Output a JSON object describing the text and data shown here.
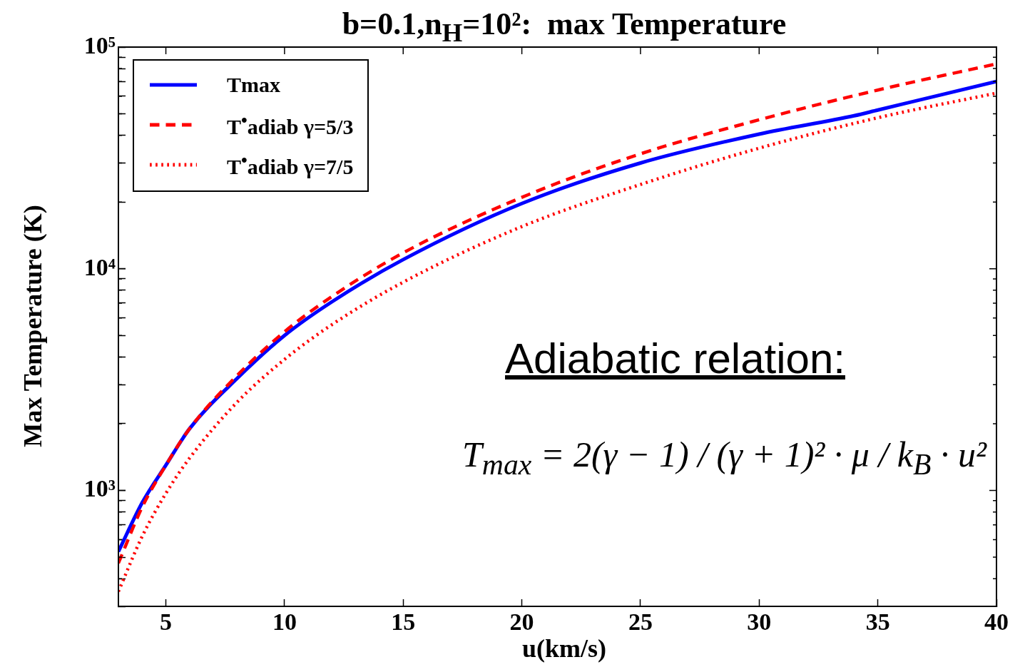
{
  "chart_data": {
    "type": "line",
    "title": "b=0.1,n$_{H}$=10²:  max Temperature",
    "xlabel": "u(km/s)",
    "ylabel": "Max Temperature (K)",
    "log": "y",
    "grid": false,
    "legend": "top left",
    "marker": "none",
    "xlim": [
      3,
      40
    ],
    "xticks": [
      5,
      10,
      15,
      20,
      25,
      30,
      35,
      40
    ],
    "ylim": [
      300,
      100000
    ],
    "yticks": [
      {
        "value": 300,
        "label": null
      },
      {
        "value": 400,
        "label": null
      },
      {
        "value": 500,
        "label": null
      },
      {
        "value": 600,
        "label": null
      },
      {
        "value": 700,
        "label": null
      },
      {
        "value": 800,
        "label": null
      },
      {
        "value": 900,
        "label": null
      },
      {
        "value": 1000,
        "label": "10³"
      },
      {
        "value": 2000,
        "label": null
      },
      {
        "value": 3000,
        "label": null
      },
      {
        "value": 4000,
        "label": null
      },
      {
        "value": 5000,
        "label": null
      },
      {
        "value": 6000,
        "label": null
      },
      {
        "value": 7000,
        "label": null
      },
      {
        "value": 8000,
        "label": null
      },
      {
        "value": 9000,
        "label": null
      },
      {
        "value": 10000,
        "label": "10⁴"
      },
      {
        "value": 20000,
        "label": null
      },
      {
        "value": 30000,
        "label": null
      },
      {
        "value": 40000,
        "label": null
      },
      {
        "value": 50000,
        "label": null
      },
      {
        "value": 60000,
        "label": null
      },
      {
        "value": 70000,
        "label": null
      },
      {
        "value": 80000,
        "label": null
      },
      {
        "value": 90000,
        "label": null
      },
      {
        "value": 100000,
        "label": "10⁵"
      }
    ],
    "series": [
      {
        "name": "Tmax",
        "color": "#0000ff",
        "line_style": "solid",
        "x": [
          3,
          4,
          5,
          6,
          8,
          10,
          12,
          15,
          20,
          25,
          30,
          34,
          35,
          40
        ],
        "values": [
          530,
          880,
          1300,
          1900,
          3200,
          5000,
          7100,
          11000,
          19700,
          30000,
          40500,
          49000,
          52000,
          70000
        ]
      },
      {
        "name": "T$^{•}$adiab γ=5/3",
        "color": "#ff0000",
        "line_style": "dashed",
        "x": [
          3,
          4,
          5,
          6,
          8,
          10,
          12,
          15,
          20,
          25,
          30,
          35,
          40
        ],
        "values": [
          470,
          840,
          1300,
          1900,
          3300,
          5200,
          7500,
          11800,
          21000,
          33000,
          47000,
          64000,
          84000
        ]
      },
      {
        "name": "T$^{•}$adiab γ=7/5",
        "color": "#ff0000",
        "line_style": "dotted",
        "x": [
          3,
          4,
          5,
          6,
          8,
          10,
          12,
          15,
          20,
          25,
          30,
          35,
          40
        ],
        "values": [
          350,
          620,
          970,
          1400,
          2500,
          3900,
          5600,
          8700,
          15500,
          24000,
          35000,
          48000,
          62000
        ]
      }
    ],
    "annotations": [
      "Adiabatic relation:",
      "T$_{max}$ = 2(γ − 1) / (γ + 1)² · μ / k$_{B}$ · u²"
    ]
  }
}
